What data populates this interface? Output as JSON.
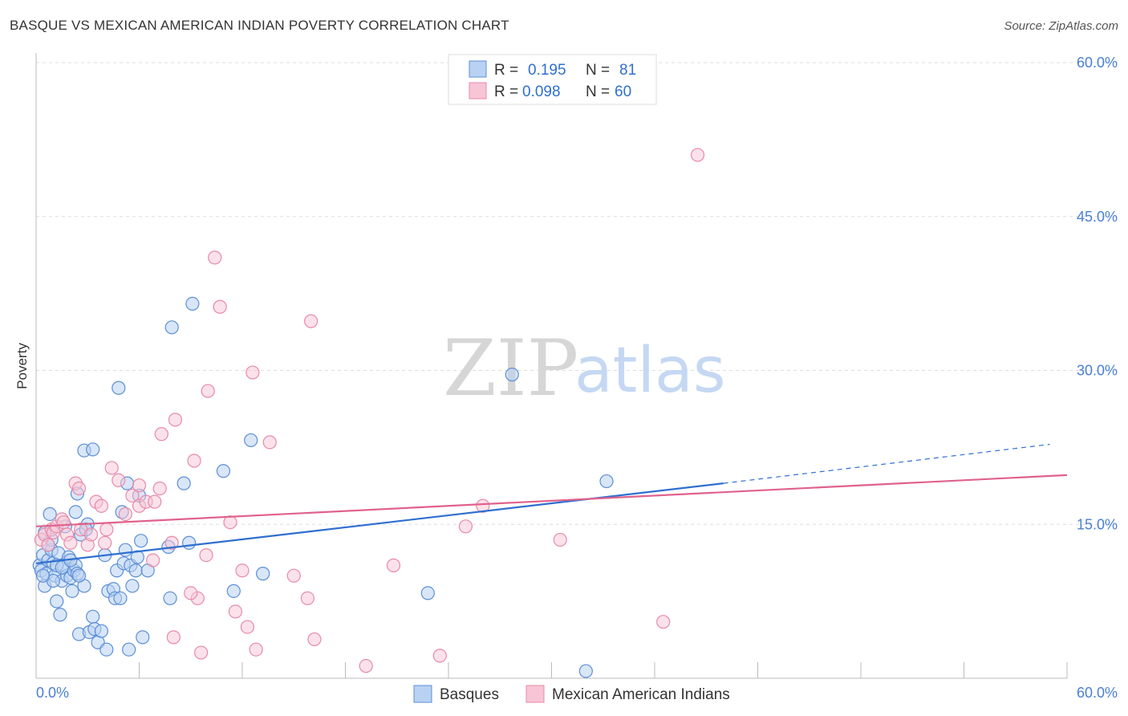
{
  "title": "BASQUE VS MEXICAN AMERICAN INDIAN POVERTY CORRELATION CHART",
  "source": "Source: ZipAtlas.com",
  "watermark": {
    "zip": "ZIP",
    "atlas": "atlas"
  },
  "colors": {
    "basques_fill": "#b9d1f2",
    "basques_stroke": "#5b8fd6",
    "basques_line": "#2f6fd0",
    "mexican_fill": "#f7c5d5",
    "mexican_stroke": "#e88aa8",
    "mexican_line": "#e0628c",
    "accent_text": "#2f6fd0",
    "grid": "#dddddd"
  },
  "legend_top": {
    "rows": [
      {
        "r_label": "R =",
        "r_value": "0.195",
        "n_label": "N =",
        "n_value": "81"
      },
      {
        "r_label": "R =",
        "r_value": "0.098",
        "n_label": "N =",
        "n_value": "60"
      }
    ]
  },
  "legend_bottom": {
    "items": [
      {
        "label": "Basques"
      },
      {
        "label": "Mexican American Indians"
      }
    ]
  },
  "chart_data": {
    "type": "scatter",
    "title": "BASQUE VS MEXICAN AMERICAN INDIAN POVERTY CORRELATION CHART",
    "xlabel": "",
    "ylabel": "Poverty",
    "xlim": [
      0,
      60
    ],
    "ylim": [
      0,
      60
    ],
    "x_tick_labels": [
      "0.0%",
      "60.0%"
    ],
    "y_ticks": [
      15,
      30,
      45,
      60
    ],
    "y_tick_labels": [
      "15.0%",
      "30.0%",
      "45.0%",
      "60.0%"
    ],
    "grid": true,
    "series": [
      {
        "name": "Basques",
        "R": 0.195,
        "N": 81,
        "trend": {
          "x0": 0,
          "y0": 11.2,
          "x1": 40,
          "y1": 19.0,
          "dashed_to_x": 59,
          "dashed_to_y": 22.8
        },
        "points": [
          [
            0.2,
            11.0
          ],
          [
            0.3,
            10.5
          ],
          [
            0.4,
            12.0
          ],
          [
            0.5,
            9.0
          ],
          [
            0.6,
            10.2
          ],
          [
            0.7,
            11.5
          ],
          [
            0.8,
            16.0
          ],
          [
            0.9,
            12.5
          ],
          [
            1.0,
            11.2
          ],
          [
            1.1,
            10.0
          ],
          [
            1.2,
            7.5
          ],
          [
            1.3,
            12.2
          ],
          [
            1.4,
            6.2
          ],
          [
            1.5,
            9.5
          ],
          [
            1.6,
            11.0
          ],
          [
            1.7,
            14.8
          ],
          [
            1.8,
            10.0
          ],
          [
            1.9,
            11.8
          ],
          [
            2.0,
            9.8
          ],
          [
            2.1,
            8.5
          ],
          [
            2.2,
            10.5
          ],
          [
            2.3,
            11.0
          ],
          [
            2.4,
            10.2
          ],
          [
            2.5,
            4.3
          ],
          [
            2.3,
            16.2
          ],
          [
            2.4,
            18.0
          ],
          [
            2.6,
            14.0
          ],
          [
            2.8,
            9.0
          ],
          [
            3.0,
            15.0
          ],
          [
            2.9,
            14.5
          ],
          [
            2.8,
            22.2
          ],
          [
            3.3,
            22.3
          ],
          [
            3.1,
            4.5
          ],
          [
            3.3,
            6.0
          ],
          [
            3.4,
            4.8
          ],
          [
            3.6,
            3.5
          ],
          [
            3.8,
            4.6
          ],
          [
            4.0,
            12.0
          ],
          [
            4.1,
            2.8
          ],
          [
            4.2,
            8.5
          ],
          [
            4.5,
            8.7
          ],
          [
            4.6,
            7.8
          ],
          [
            4.7,
            10.5
          ],
          [
            4.8,
            28.3
          ],
          [
            4.9,
            7.8
          ],
          [
            5.0,
            16.2
          ],
          [
            5.1,
            11.2
          ],
          [
            5.2,
            12.5
          ],
          [
            5.3,
            19.0
          ],
          [
            5.4,
            2.8
          ],
          [
            5.5,
            11.0
          ],
          [
            5.6,
            9.0
          ],
          [
            5.8,
            10.5
          ],
          [
            5.9,
            11.8
          ],
          [
            6.0,
            17.8
          ],
          [
            6.1,
            13.4
          ],
          [
            6.2,
            4.0
          ],
          [
            6.5,
            10.5
          ],
          [
            7.7,
            12.8
          ],
          [
            7.8,
            7.8
          ],
          [
            7.9,
            34.2
          ],
          [
            8.6,
            19.0
          ],
          [
            8.9,
            13.2
          ],
          [
            9.1,
            36.5
          ],
          [
            10.9,
            20.2
          ],
          [
            11.5,
            8.5
          ],
          [
            12.5,
            23.2
          ],
          [
            13.2,
            10.2
          ],
          [
            22.8,
            8.3
          ],
          [
            27.7,
            29.6
          ],
          [
            33.2,
            19.2
          ],
          [
            32.0,
            0.7
          ],
          [
            0.9,
            13.5
          ],
          [
            1.2,
            11.0
          ],
          [
            0.5,
            14.2
          ],
          [
            0.7,
            13.0
          ],
          [
            1.5,
            10.8
          ],
          [
            2.0,
            11.5
          ],
          [
            2.5,
            10.0
          ],
          [
            1.0,
            9.5
          ],
          [
            0.4,
            10.0
          ]
        ]
      },
      {
        "name": "Mexican American Indians",
        "R": 0.098,
        "N": 60,
        "trend": {
          "x0": 0,
          "y0": 14.8,
          "x1": 60,
          "y1": 19.8
        },
        "points": [
          [
            0.3,
            13.5
          ],
          [
            0.5,
            14.0
          ],
          [
            0.7,
            13.0
          ],
          [
            0.9,
            14.5
          ],
          [
            1.0,
            14.2
          ],
          [
            1.2,
            14.8
          ],
          [
            1.5,
            15.5
          ],
          [
            1.6,
            15.2
          ],
          [
            1.8,
            14.0
          ],
          [
            2.0,
            13.2
          ],
          [
            2.3,
            19.0
          ],
          [
            2.5,
            18.5
          ],
          [
            2.6,
            14.5
          ],
          [
            3.0,
            13.0
          ],
          [
            3.2,
            14.0
          ],
          [
            3.5,
            17.2
          ],
          [
            3.8,
            16.8
          ],
          [
            4.0,
            13.2
          ],
          [
            4.1,
            14.5
          ],
          [
            4.4,
            20.5
          ],
          [
            4.8,
            19.3
          ],
          [
            5.2,
            16.0
          ],
          [
            5.6,
            17.8
          ],
          [
            6.0,
            18.8
          ],
          [
            6.0,
            16.8
          ],
          [
            6.4,
            17.2
          ],
          [
            6.9,
            17.2
          ],
          [
            7.2,
            18.5
          ],
          [
            7.3,
            23.8
          ],
          [
            7.9,
            13.2
          ],
          [
            8.1,
            25.2
          ],
          [
            9.2,
            21.2
          ],
          [
            9.4,
            7.8
          ],
          [
            9.6,
            2.5
          ],
          [
            9.9,
            12.0
          ],
          [
            10.0,
            28.0
          ],
          [
            10.4,
            41.0
          ],
          [
            10.7,
            36.2
          ],
          [
            11.3,
            15.2
          ],
          [
            11.6,
            6.5
          ],
          [
            12.0,
            10.5
          ],
          [
            12.3,
            5.0
          ],
          [
            12.8,
            2.8
          ],
          [
            12.6,
            29.8
          ],
          [
            13.6,
            23.0
          ],
          [
            15.0,
            10.0
          ],
          [
            16.0,
            34.8
          ],
          [
            16.2,
            3.8
          ],
          [
            15.8,
            7.8
          ],
          [
            19.2,
            1.2
          ],
          [
            20.8,
            11.0
          ],
          [
            23.5,
            2.2
          ],
          [
            25.0,
            14.8
          ],
          [
            26.0,
            16.8
          ],
          [
            30.5,
            13.5
          ],
          [
            36.5,
            5.5
          ],
          [
            38.5,
            51.0
          ],
          [
            8.0,
            4.0
          ],
          [
            6.8,
            11.5
          ],
          [
            9.0,
            8.3
          ]
        ]
      }
    ]
  }
}
